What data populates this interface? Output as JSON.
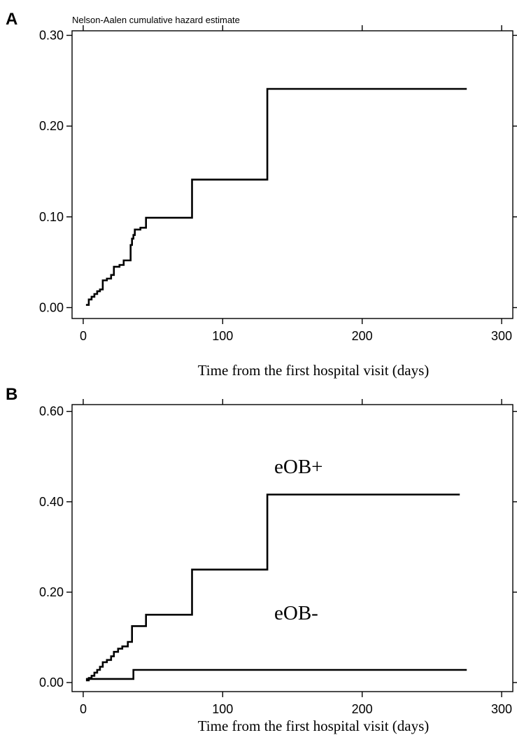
{
  "chart_data": [
    {
      "type": "line",
      "panel": "A",
      "subtitle": "Nelson-Aalen cumulative hazard estimate",
      "xlabel": "Time from the first hospital visit (days)",
      "ylabel": "",
      "xlim": [
        -8,
        308
      ],
      "ylim": [
        -0.012,
        0.305
      ],
      "xticks": [
        0,
        100,
        200,
        300
      ],
      "xtick_labels": [
        "0",
        "100",
        "200",
        "300"
      ],
      "yticks": [
        0,
        0.1,
        0.2,
        0.3
      ],
      "ytick_labels": [
        "0.00",
        "0.10",
        "0.20",
        "0.30"
      ],
      "grid": false,
      "step": true,
      "series": [
        {
          "x": [
            2,
            4,
            6,
            8,
            10,
            12,
            14,
            17,
            20,
            22,
            26,
            29,
            34,
            35,
            36,
            37,
            41,
            45,
            78,
            132,
            275
          ],
          "y": [
            0.003,
            0.009,
            0.012,
            0.015,
            0.018,
            0.02,
            0.03,
            0.032,
            0.036,
            0.045,
            0.047,
            0.052,
            0.069,
            0.076,
            0.08,
            0.086,
            0.088,
            0.099,
            0.141,
            0.241,
            0.241
          ]
        }
      ]
    },
    {
      "type": "line",
      "panel": "B",
      "xlabel": "Time from the first hospital visit (days)",
      "ylabel": "",
      "xlim": [
        -8,
        308
      ],
      "ylim": [
        -0.02,
        0.615
      ],
      "xticks": [
        0,
        100,
        200,
        300
      ],
      "xtick_labels": [
        "0",
        "100",
        "200",
        "300"
      ],
      "yticks": [
        0,
        0.2,
        0.4,
        0.6
      ],
      "ytick_labels": [
        "0.00",
        "0.20",
        "0.40",
        "0.60"
      ],
      "grid": false,
      "step": true,
      "series": [
        {
          "name": "eOB+",
          "x": [
            2,
            4,
            6,
            8,
            10,
            12,
            14,
            17,
            20,
            22,
            25,
            28,
            32,
            35,
            37,
            45,
            78,
            132,
            270
          ],
          "y": [
            0.005,
            0.01,
            0.015,
            0.022,
            0.028,
            0.035,
            0.045,
            0.05,
            0.058,
            0.068,
            0.075,
            0.08,
            0.09,
            0.125,
            0.125,
            0.15,
            0.25,
            0.416,
            0.416
          ]
        },
        {
          "name": "eOB-",
          "x": [
            2,
            36,
            275
          ],
          "y": [
            0.008,
            0.028,
            0.028
          ]
        }
      ]
    }
  ]
}
